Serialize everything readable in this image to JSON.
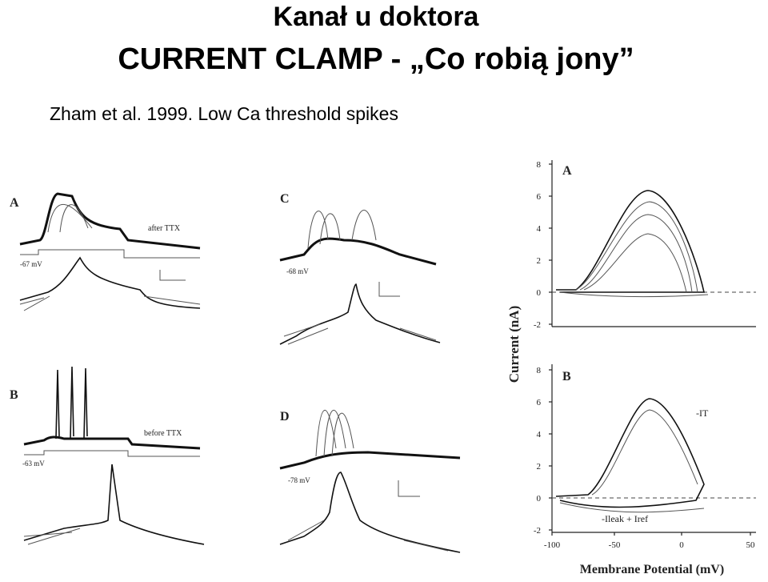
{
  "header": {
    "title": "Kanał u doktora",
    "subtitle": "CURRENT CLAMP - „Co robią jony”"
  },
  "citation": "Zham et al. 1999. Low Ca threshold spikes",
  "figure": {
    "left_panels": [
      {
        "label": "A",
        "note": "after TTX",
        "potential": "-67 mV"
      },
      {
        "label": "B",
        "note": "before TTX",
        "potential": "-63 mV"
      },
      {
        "label": "C",
        "potential": "-68 mV"
      },
      {
        "label": "D",
        "potential": "-78 mV"
      }
    ],
    "right_panels": {
      "panels": [
        {
          "label": "A"
        },
        {
          "label": "B",
          "annotations": [
            "-IT",
            "-Ileak + Iref"
          ]
        }
      ],
      "y_label": "Current (nA)",
      "x_label": "Membrane Potential (mV)",
      "yticks": [
        "8",
        "6",
        "4",
        "2",
        "0",
        "-2"
      ],
      "xticks": [
        "-100",
        "-50",
        "0",
        "50"
      ]
    }
  }
}
